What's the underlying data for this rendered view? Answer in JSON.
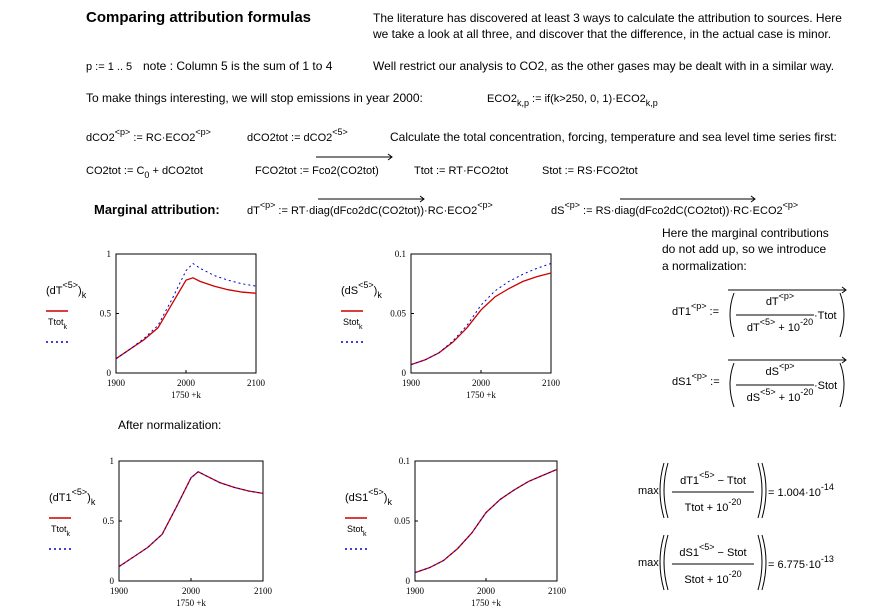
{
  "title": "Comparing attribution formulas",
  "intro": [
    "The literature has discovered at least 3 ways to calculate the attribution to sources. Here",
    "we take a look at all three, and discover that the difference, in the actual case is minor."
  ],
  "range_def": "p := 1 .. 5",
  "note": "note : Column 5 is the sum of 1 to 4",
  "restrict": "Well restrict our analysis to CO2, as the other gases may be dealt with in a similar way.",
  "interesting": "To make things interesting, we will stop emissions in year 2000:",
  "calculate": "Calculate the total concentration, forcing, temperature and sea level time series first:",
  "marginal_label": "Marginal attribution:",
  "explain": [
    "Here the marginal contributions",
    "do not add up, so we introduce",
    "a normalization:"
  ],
  "after": "After normalization:",
  "formulas": {
    "eco2": [
      "ECO2",
      {
        "sub": "k,p"
      },
      " := if(k>250, 0, 1)·ECO2",
      {
        "sub": "k,p"
      }
    ],
    "dco2": [
      "dCO2",
      {
        "sup": "<p>"
      },
      " := RC·ECO2",
      {
        "sup": "<p>"
      }
    ],
    "dco2tot": [
      "dCO2tot := dCO2",
      {
        "sup": "<5>"
      }
    ],
    "co2tot": [
      "CO2tot := C",
      {
        "sub": "0"
      },
      " + dCO2tot"
    ],
    "fco2tot": [
      "FCO2tot := Fco2(CO2tot)"
    ],
    "ttot": [
      "Ttot := RT·FCO2tot"
    ],
    "stot": [
      "Stot := RS·FCO2tot"
    ],
    "dt": [
      "dT",
      {
        "sup": "<p>"
      },
      " := RT·diag(dFco2dC(CO2tot))·RC·ECO2",
      {
        "sup": "<p>"
      }
    ],
    "ds": [
      "dS",
      {
        "sup": "<p>"
      },
      " := RS·diag(dFco2dC(CO2tot))·RC·ECO2",
      {
        "sup": "<p>"
      }
    ]
  },
  "normalization": [
    {
      "lhs": [
        "dT1",
        {
          "sup": "<p>"
        },
        " :="
      ],
      "num": [
        "dT",
        {
          "sup": "<p>"
        }
      ],
      "den": [
        "dT",
        {
          "sup": "<5>"
        },
        " + 10",
        {
          "sup": "-20"
        }
      ],
      "factor": "·Ttot"
    },
    {
      "lhs": [
        "dS1",
        {
          "sup": "<p>"
        },
        " :="
      ],
      "num": [
        "dS",
        {
          "sup": "<p>"
        }
      ],
      "den": [
        "dS",
        {
          "sup": "<5>"
        },
        " + 10",
        {
          "sup": "-20"
        }
      ],
      "factor": "·Stot"
    }
  ],
  "checks": [
    {
      "func": "max",
      "num": [
        "dT1",
        {
          "sup": "<5>"
        },
        " − Ttot"
      ],
      "den": [
        "Ttot + 10",
        {
          "sup": "-20"
        }
      ],
      "result": [
        "= 1.004·10",
        {
          "sup": "-14"
        }
      ]
    },
    {
      "func": "max",
      "num": [
        "dS1",
        {
          "sup": "<5>"
        },
        " − Stot"
      ],
      "den": [
        "Stot + 10",
        {
          "sup": "-20"
        }
      ],
      "result": [
        "= 6.775·10",
        {
          "sup": "-13"
        }
      ]
    }
  ],
  "chart_data": [
    {
      "type": "line",
      "xlabel": "1750 +k",
      "x": [
        1900,
        1920,
        1940,
        1960,
        1980,
        2000,
        2010,
        2020,
        2040,
        2060,
        2080,
        2100
      ],
      "xlim": [
        1900,
        2100
      ],
      "xticks": [
        1900,
        2000,
        2100
      ],
      "ylim": [
        0,
        1
      ],
      "yticks": [
        0,
        0.5,
        1
      ],
      "series": [
        {
          "name": [
            "(dT",
            {
              "sup": "<5>"
            },
            ")",
            {
              "sub": "k"
            }
          ],
          "color": "#cc0000",
          "style": "solid",
          "values": [
            0.12,
            0.2,
            0.28,
            0.38,
            0.58,
            0.78,
            0.8,
            0.77,
            0.73,
            0.7,
            0.68,
            0.67
          ]
        },
        {
          "name": [
            "Ttot",
            {
              "sub": "k"
            }
          ],
          "color": "#0000cc",
          "style": "dotted",
          "values": [
            0.12,
            0.2,
            0.29,
            0.4,
            0.62,
            0.86,
            0.92,
            0.88,
            0.82,
            0.78,
            0.75,
            0.73
          ]
        }
      ]
    },
    {
      "type": "line",
      "xlabel": "1750 +k",
      "x": [
        1900,
        1920,
        1940,
        1960,
        1980,
        2000,
        2020,
        2040,
        2060,
        2080,
        2100
      ],
      "xlim": [
        1900,
        2100
      ],
      "xticks": [
        1900,
        2000,
        2100
      ],
      "ylim": [
        0,
        0.1
      ],
      "yticks": [
        0,
        0.05,
        0.1
      ],
      "series": [
        {
          "name": [
            "(dS",
            {
              "sup": "<5>"
            },
            ")",
            {
              "sub": "k"
            }
          ],
          "color": "#cc0000",
          "style": "solid",
          "values": [
            0.007,
            0.011,
            0.017,
            0.026,
            0.038,
            0.053,
            0.064,
            0.071,
            0.077,
            0.081,
            0.084
          ]
        },
        {
          "name": [
            "Stot",
            {
              "sub": "k"
            }
          ],
          "color": "#0000cc",
          "style": "dotted",
          "values": [
            0.007,
            0.011,
            0.017,
            0.027,
            0.04,
            0.057,
            0.069,
            0.077,
            0.083,
            0.088,
            0.092
          ]
        }
      ]
    },
    {
      "type": "line",
      "xlabel": "1750 +k",
      "x": [
        1900,
        1920,
        1940,
        1960,
        1980,
        2000,
        2010,
        2020,
        2040,
        2060,
        2080,
        2100
      ],
      "xlim": [
        1900,
        2100
      ],
      "xticks": [
        1900,
        2000,
        2100
      ],
      "ylim": [
        0,
        1
      ],
      "yticks": [
        0,
        0.5,
        1
      ],
      "series": [
        {
          "name": [
            "(dT1",
            {
              "sup": "<5>"
            },
            ")",
            {
              "sub": "k"
            }
          ],
          "color": "#cc0000",
          "style": "solid",
          "values": [
            0.12,
            0.2,
            0.28,
            0.39,
            0.62,
            0.86,
            0.91,
            0.88,
            0.82,
            0.78,
            0.75,
            0.73
          ]
        },
        {
          "name": [
            "Ttot",
            {
              "sub": "k"
            }
          ],
          "color": "#0000cc",
          "style": "dotted",
          "values": [
            0.12,
            0.2,
            0.28,
            0.39,
            0.62,
            0.86,
            0.91,
            0.88,
            0.82,
            0.78,
            0.75,
            0.73
          ]
        }
      ]
    },
    {
      "type": "line",
      "xlabel": "1750 +k",
      "x": [
        1900,
        1920,
        1940,
        1960,
        1980,
        2000,
        2020,
        2040,
        2060,
        2080,
        2100
      ],
      "xlim": [
        1900,
        2100
      ],
      "xticks": [
        1900,
        2000,
        2100
      ],
      "ylim": [
        0,
        0.1
      ],
      "yticks": [
        0,
        0.05,
        0.1
      ],
      "series": [
        {
          "name": [
            "(dS1",
            {
              "sup": "<5>"
            },
            ")",
            {
              "sub": "k"
            }
          ],
          "color": "#cc0000",
          "style": "solid",
          "values": [
            0.007,
            0.011,
            0.017,
            0.027,
            0.04,
            0.057,
            0.068,
            0.076,
            0.083,
            0.088,
            0.093
          ]
        },
        {
          "name": [
            "Stot",
            {
              "sub": "k"
            }
          ],
          "color": "#0000cc",
          "style": "dotted",
          "values": [
            0.007,
            0.011,
            0.017,
            0.027,
            0.04,
            0.057,
            0.068,
            0.076,
            0.083,
            0.088,
            0.093
          ]
        }
      ]
    }
  ]
}
